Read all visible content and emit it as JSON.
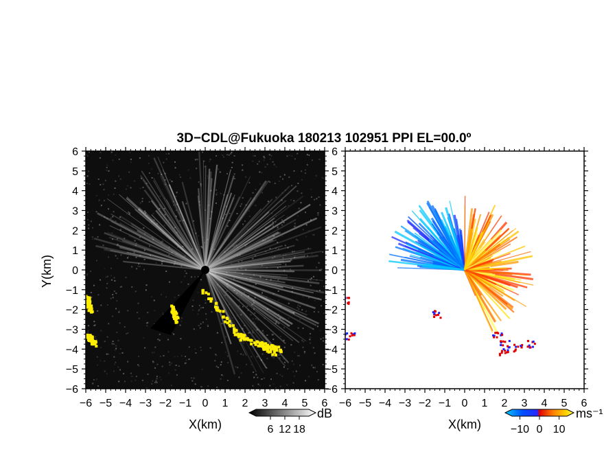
{
  "title": "3D−CDL@Fukuoka 180213 102951 PPI EL=00.0º",
  "chart_data": [
    {
      "type": "heatmap",
      "panel": "left",
      "quantity": "backscatter intensity",
      "xlabel": "X(km)",
      "ylabel": "Y(km)",
      "xlim": [
        -6,
        6
      ],
      "ylim": [
        -6,
        6
      ],
      "xticks": [
        "−6",
        "−5",
        "−4",
        "−3",
        "−2",
        "−1",
        "0",
        "1",
        "2",
        "3",
        "4",
        "5",
        "6"
      ],
      "yticks": [
        "6",
        "5",
        "4",
        "3",
        "2",
        "1",
        "0",
        "−1",
        "−2",
        "−3",
        "−4",
        "−5",
        "−6"
      ],
      "colorbar": {
        "unit": "dB",
        "ticks": [
          "6",
          "12",
          "18"
        ],
        "range": [
          0,
          22
        ],
        "colors": [
          "#000000",
          "#ffffff"
        ]
      },
      "background_color": "#000000",
      "highlight_color": "#ffee00",
      "highlight_regions_km": [
        {
          "x": [
            -6.0,
            -5.8
          ],
          "y": [
            -1.3,
            -2.0
          ]
        },
        {
          "x": [
            -6.0,
            -5.6
          ],
          "y": [
            -3.2,
            -3.7
          ]
        },
        {
          "x": [
            -0.2,
            1.9
          ],
          "y": [
            -0.9,
            -3.6
          ]
        },
        {
          "x": [
            1.6,
            3.5
          ],
          "y": [
            -3.2,
            -4.2
          ]
        },
        {
          "x": [
            2.5,
            3.8
          ],
          "y": [
            -3.6,
            -4.0
          ]
        },
        {
          "x": [
            -1.7,
            -1.5
          ],
          "y": [
            -1.8,
            -2.5
          ]
        }
      ]
    },
    {
      "type": "heatmap",
      "panel": "right",
      "quantity": "radial velocity",
      "xlabel": "X(km)",
      "xlim": [
        -6,
        6
      ],
      "ylim": [
        -6,
        6
      ],
      "xticks": [
        "−6",
        "−5",
        "−4",
        "−3",
        "−2",
        "−1",
        "0",
        "1",
        "2",
        "3",
        "4",
        "5",
        "6"
      ],
      "yticks": [
        "6",
        "5",
        "4",
        "3",
        "2",
        "1",
        "0",
        "−1",
        "−2",
        "−3",
        "−4",
        "−5",
        "−6"
      ],
      "colorbar": {
        "unit": "ms⁻¹",
        "ticks": [
          "−10",
          "0",
          "10"
        ],
        "range": [
          -14,
          14
        ],
        "colors": [
          "#00c8ff",
          "#0050ff",
          "#2828ff",
          "#e00000",
          "#ff8000",
          "#ffd800",
          "#ffff60"
        ]
      },
      "background_color": "#ffffff",
      "approaching_sector_deg": [
        95,
        180
      ],
      "receding_sector_deg": [
        -70,
        90
      ]
    }
  ],
  "colors": {
    "frame": "#000000",
    "gray_background": "#0e0e0e",
    "yellow": "#ffee00"
  }
}
